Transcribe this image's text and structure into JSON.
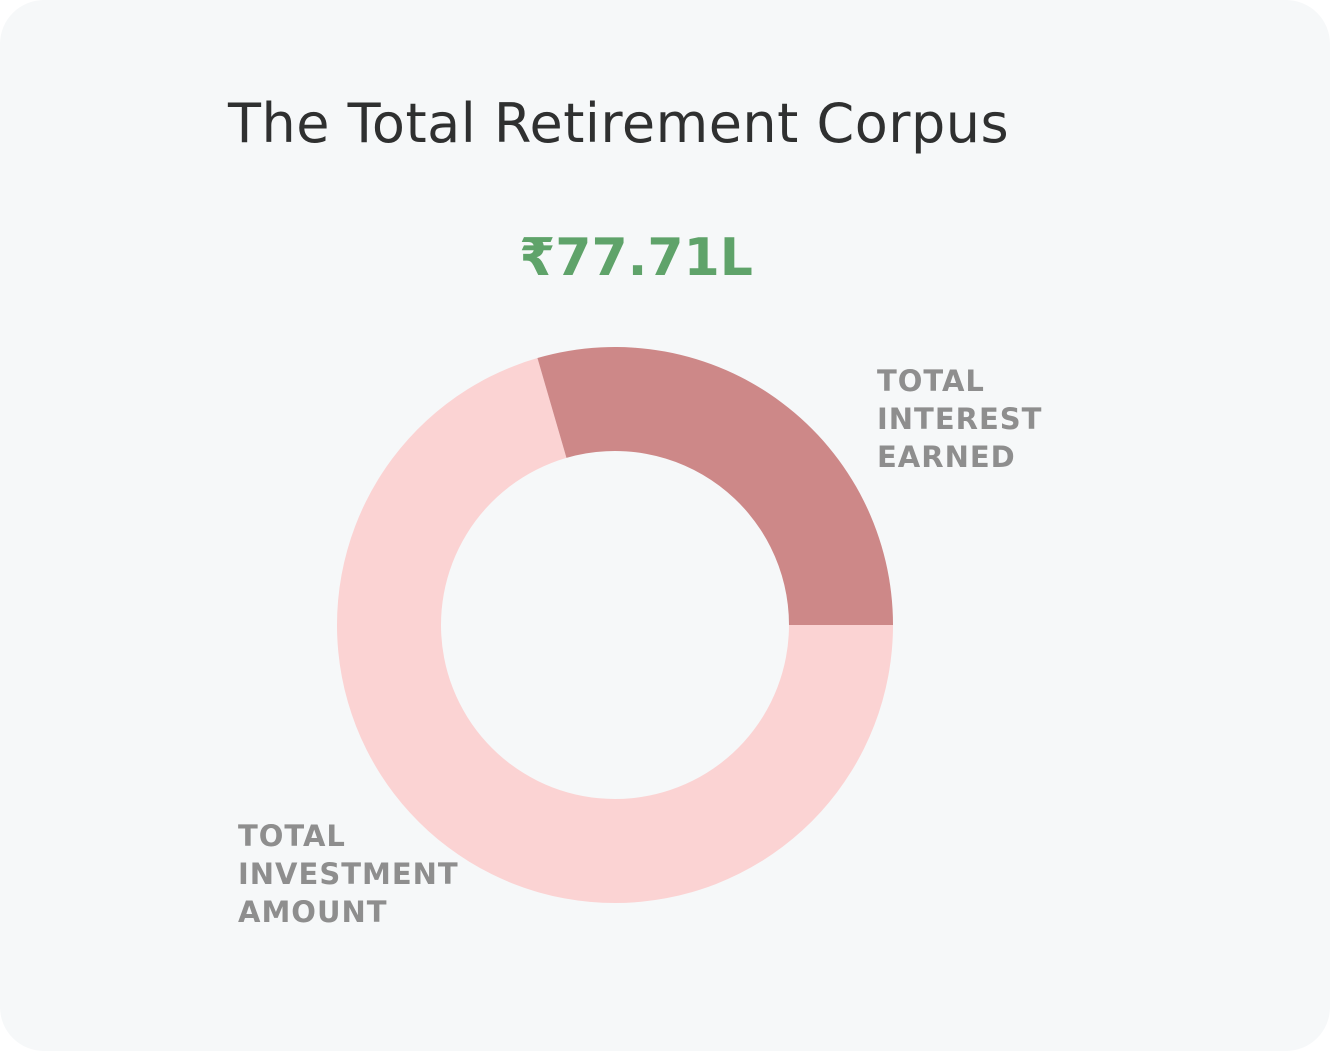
{
  "chart_data": {
    "type": "donut",
    "title": "The Total Retirement Corpus",
    "total_label": "₹77.71L",
    "categories": [
      "TOTAL INVESTMENT AMOUNT",
      "TOTAL INTEREST EARNED"
    ],
    "values": [
      70.5,
      29.5
    ],
    "colors": [
      "#fbd3d3",
      "#cd8888"
    ]
  }
}
